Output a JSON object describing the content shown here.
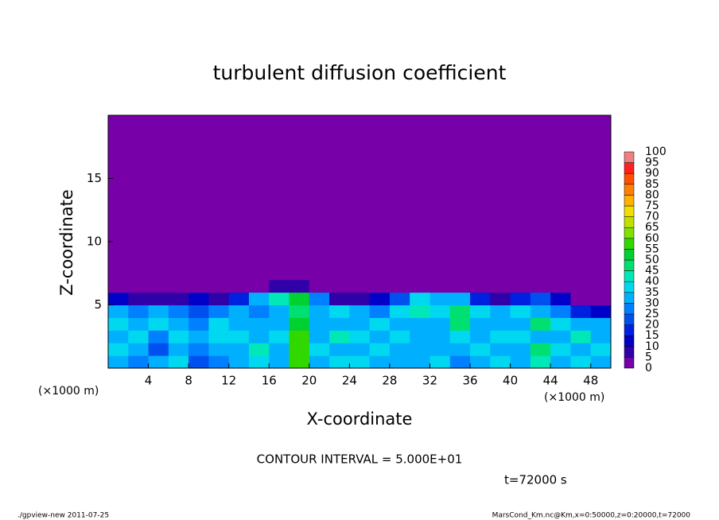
{
  "chart_data": {
    "type": "heatmap",
    "title": "turbulent diffusion coefficient",
    "xlabel": "X-coordinate",
    "ylabel": "Z-coordinate",
    "xunit": "(×1000 m)",
    "yunit": "(×1000 m)",
    "annotation": "CONTOUR INTERVAL = 5.000E+01",
    "time_label": "t=72000 s",
    "footer_left": "./gpview-new  2011-07-25",
    "footer_right": "MarsCond_Km.nc@Km,x=0:50000,z=0:20000,t=72000",
    "xlim": [
      0,
      50
    ],
    "ylim": [
      0,
      20
    ],
    "xticks": [
      4,
      8,
      12,
      16,
      20,
      24,
      28,
      32,
      36,
      40,
      44,
      48
    ],
    "yticks": [
      5,
      10,
      15
    ],
    "xbins": [
      0,
      2,
      4,
      6,
      8,
      10,
      12,
      14,
      16,
      18,
      20,
      22,
      24,
      26,
      28,
      30,
      32,
      34,
      36,
      38,
      40,
      42,
      44,
      46,
      48,
      50
    ],
    "ybins": [
      0,
      1,
      2,
      3,
      4,
      5,
      6,
      7,
      20
    ],
    "values": [
      [
        30,
        25,
        30,
        35,
        20,
        25,
        30,
        35,
        30,
        55,
        30,
        35,
        35,
        30,
        30,
        30,
        35,
        25,
        30,
        35,
        30,
        40,
        30,
        35,
        30
      ],
      [
        35,
        30,
        20,
        30,
        25,
        30,
        30,
        40,
        30,
        55,
        35,
        30,
        30,
        35,
        30,
        30,
        30,
        30,
        35,
        30,
        30,
        45,
        35,
        30,
        35
      ],
      [
        30,
        35,
        25,
        35,
        30,
        35,
        35,
        30,
        35,
        55,
        30,
        40,
        35,
        30,
        35,
        30,
        30,
        35,
        30,
        35,
        35,
        30,
        30,
        40,
        30
      ],
      [
        35,
        30,
        35,
        30,
        25,
        35,
        30,
        30,
        30,
        50,
        30,
        30,
        30,
        35,
        30,
        30,
        30,
        45,
        30,
        30,
        30,
        45,
        35,
        30,
        30
      ],
      [
        30,
        25,
        30,
        25,
        20,
        25,
        30,
        25,
        30,
        45,
        30,
        35,
        30,
        25,
        35,
        40,
        35,
        45,
        35,
        30,
        35,
        30,
        25,
        15,
        10
      ],
      [
        10,
        5,
        5,
        5,
        10,
        5,
        15,
        30,
        40,
        50,
        25,
        5,
        5,
        10,
        20,
        35,
        30,
        30,
        15,
        5,
        15,
        20,
        10,
        0,
        0
      ],
      [
        0,
        0,
        0,
        0,
        0,
        0,
        0,
        0,
        5,
        5,
        0,
        0,
        0,
        0,
        0,
        0,
        0,
        0,
        0,
        0,
        0,
        0,
        0,
        0,
        0
      ],
      [
        0,
        0,
        0,
        0,
        0,
        0,
        0,
        0,
        0,
        0,
        0,
        0,
        0,
        0,
        0,
        0,
        0,
        0,
        0,
        0,
        0,
        0,
        0,
        0,
        0
      ]
    ],
    "levels": [
      0,
      5,
      10,
      15,
      20,
      25,
      30,
      35,
      40,
      45,
      50,
      55,
      60,
      65,
      70,
      75,
      80,
      85,
      90,
      95,
      100
    ],
    "colors": [
      "#7800a8",
      "#3000a8",
      "#0000c8",
      "#0020e0",
      "#0050f0",
      "#0080ff",
      "#00b0ff",
      "#00d8f0",
      "#00e8b8",
      "#00e070",
      "#00d030",
      "#30d800",
      "#80e000",
      "#c0e000",
      "#f0e000",
      "#ffb000",
      "#ff8000",
      "#ff5000",
      "#ff2020",
      "#f08080"
    ]
  }
}
